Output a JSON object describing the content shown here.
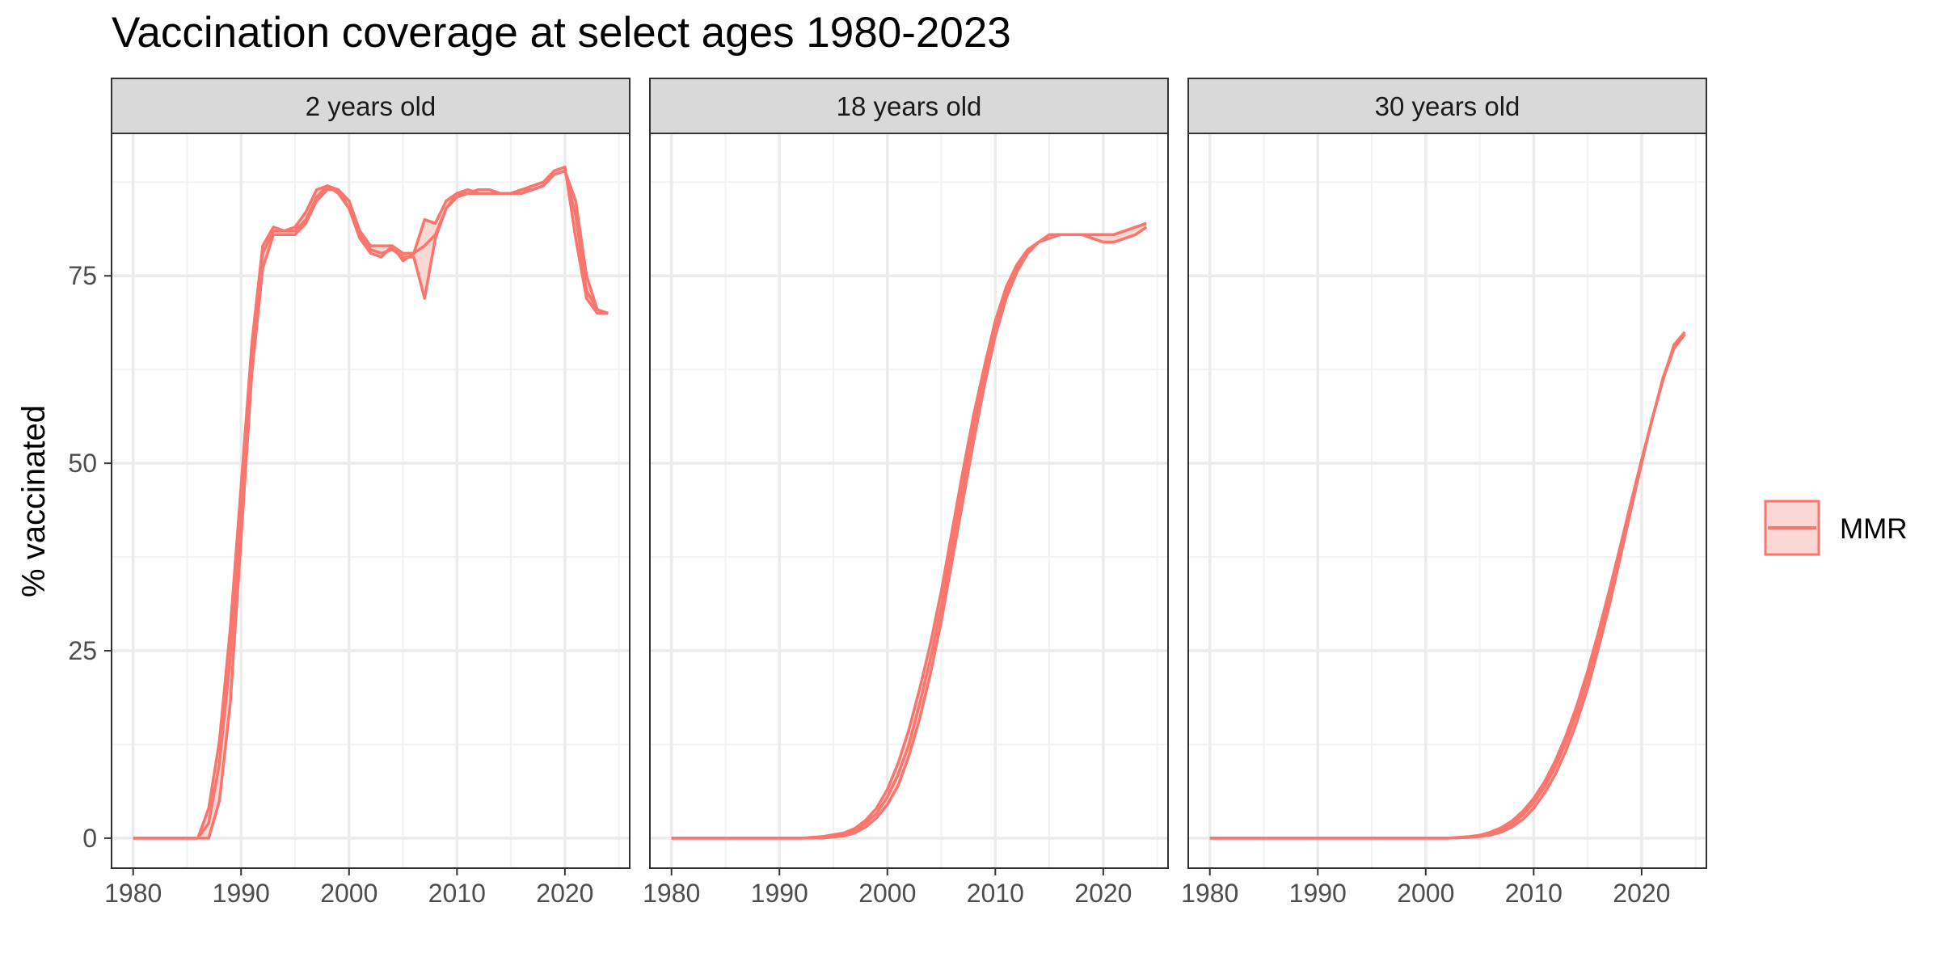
{
  "chart_data": {
    "type": "area",
    "title": "Vaccination coverage at select ages 1980-2023",
    "xlabel": "",
    "ylabel": "% vaccinated",
    "xlim": [
      1978,
      2026
    ],
    "ylim": [
      -4,
      94
    ],
    "x_ticks": [
      1980,
      1990,
      2000,
      2010,
      2020
    ],
    "y_ticks": [
      0,
      25,
      50,
      75
    ],
    "y_tick_labels": [
      "0",
      "25",
      "50",
      "75"
    ],
    "x_tick_labels": [
      "1980",
      "1990",
      "2000",
      "2010",
      "2020"
    ],
    "grid": true,
    "legend": {
      "position": "right",
      "entries": [
        "MMR"
      ]
    },
    "series_color": "#F8766D",
    "fill_color": "#FBD7D3",
    "panels": [
      {
        "label": "2 years old",
        "x": [
          1980,
          1981,
          1982,
          1983,
          1984,
          1985,
          1986,
          1987,
          1988,
          1989,
          1990,
          1991,
          1992,
          1993,
          1994,
          1995,
          1996,
          1997,
          1998,
          1999,
          2000,
          2001,
          2002,
          2003,
          2004,
          2005,
          2006,
          2007,
          2008,
          2009,
          2010,
          2011,
          2012,
          2013,
          2014,
          2015,
          2016,
          2017,
          2018,
          2019,
          2020,
          2021,
          2022,
          2023,
          2024
        ],
        "series": [
          {
            "name": "MMR",
            "values": [
              0,
              0,
              0,
              0,
              0,
              0,
              0,
              4,
              13,
              28,
              47,
              66,
              79,
              81.5,
              81,
              81.5,
              83.5,
              86.5,
              87,
              86,
              84,
              80,
              78,
              77.5,
              79,
              77,
              78,
              82.5,
              82,
              85,
              86,
              86,
              86.5,
              86.5,
              86,
              86,
              86.5,
              86.5,
              87,
              88.5,
              89,
              85,
              75,
              70.5,
              70
            ]
          },
          {
            "name": "MMR",
            "values": [
              0,
              0,
              0,
              0,
              0,
              0,
              0,
              2,
              10,
              24,
              44,
              64,
              78,
              81,
              81,
              81,
              82.5,
              85.5,
              87,
              86.5,
              84,
              80.5,
              78.5,
              78,
              78.5,
              77.5,
              77.5,
              72,
              80,
              84,
              85.5,
              86,
              86,
              86,
              86,
              86,
              86.5,
              87,
              87.5,
              89,
              89.5,
              80,
              72,
              70,
              70
            ]
          },
          {
            "name": "MMR",
            "values": [
              0,
              0,
              0,
              0,
              0,
              0,
              0,
              0,
              5,
              18,
              40,
              62,
              76,
              80.5,
              80.5,
              80.5,
              82,
              85,
              86.5,
              86.5,
              85,
              81,
              79,
              79,
              79,
              78,
              78,
              79,
              80.5,
              84,
              86,
              86.5,
              86,
              86,
              86,
              86,
              86,
              86.5,
              87,
              88.5,
              89,
              83,
              73,
              70.5,
              70
            ]
          }
        ]
      },
      {
        "label": "18 years old",
        "x": [
          1980,
          1982,
          1984,
          1986,
          1988,
          1990,
          1992,
          1994,
          1996,
          1997,
          1998,
          1999,
          2000,
          2001,
          2002,
          2003,
          2004,
          2005,
          2006,
          2007,
          2008,
          2009,
          2010,
          2011,
          2012,
          2013,
          2014,
          2015,
          2016,
          2017,
          2018,
          2019,
          2020,
          2021,
          2022,
          2023,
          2024
        ],
        "series": [
          {
            "name": "MMR",
            "values": [
              0,
              0,
              0,
              0,
              0,
              0,
              0,
              0.2,
              0.7,
              1.3,
              2.4,
              4,
              6.5,
              10,
              14.5,
              20,
              26,
              33,
              41,
              49,
              56.5,
              63,
              69,
              73.5,
              76.5,
              78.5,
              79.5,
              80,
              80.5,
              80.5,
              80.5,
              80.5,
              80.5,
              80.5,
              81,
              81.5,
              82
            ]
          },
          {
            "name": "MMR",
            "values": [
              0,
              0,
              0,
              0,
              0,
              0,
              0,
              0.1,
              0.5,
              1,
              2,
              3.3,
              5.5,
              8.5,
              12.5,
              18,
              24,
              31,
              39,
              47,
              55,
              62,
              68,
              73,
              76,
              78,
              79.5,
              80.5,
              80.5,
              80.5,
              80.5,
              80.5,
              80.5,
              80.5,
              81,
              81.5,
              82
            ]
          },
          {
            "name": "MMR",
            "values": [
              0,
              0,
              0,
              0,
              0,
              0,
              0,
              0,
              0.3,
              0.7,
              1.5,
              2.7,
              4.5,
              7,
              11,
              16,
              22,
              29,
              37,
              45,
              53,
              60.5,
              67,
              72,
              75.5,
              78,
              79.5,
              80,
              80.5,
              80.5,
              80.5,
              80,
              79.5,
              79.5,
              80,
              80.5,
              81.5
            ]
          }
        ]
      },
      {
        "label": "30 years old",
        "x": [
          1980,
          1984,
          1988,
          1992,
          1996,
          2000,
          2002,
          2004,
          2005,
          2006,
          2007,
          2008,
          2009,
          2010,
          2011,
          2012,
          2013,
          2014,
          2015,
          2016,
          2017,
          2018,
          2019,
          2020,
          2021,
          2022,
          2023,
          2024
        ],
        "series": [
          {
            "name": "MMR",
            "values": [
              0,
              0,
              0,
              0,
              0,
              0,
              0,
              0.2,
              0.4,
              0.8,
              1.4,
              2.3,
              3.6,
              5.3,
              7.5,
              10.3,
              13.7,
              17.7,
              22.3,
              27.5,
              33,
              38.8,
              44.7,
              50.5,
              56,
              61.2,
              65.8,
              67.5
            ]
          },
          {
            "name": "MMR",
            "values": [
              0,
              0,
              0,
              0,
              0,
              0,
              0,
              0.1,
              0.3,
              0.6,
              1.1,
              1.9,
              3.1,
              4.7,
              6.8,
              9.5,
              12.8,
              16.7,
              21.3,
              26.5,
              32.2,
              38.3,
              44.3,
              50.3,
              56,
              61.3,
              65.3,
              67.2
            ]
          },
          {
            "name": "MMR",
            "values": [
              0,
              0,
              0,
              0,
              0,
              0,
              0,
              0.1,
              0.2,
              0.4,
              0.8,
              1.5,
              2.5,
              4,
              6,
              8.5,
              11.7,
              15.5,
              20,
              25.3,
              31,
              37.3,
              43.7,
              50,
              56,
              61.5,
              65.5,
              67.2
            ]
          }
        ]
      }
    ]
  }
}
